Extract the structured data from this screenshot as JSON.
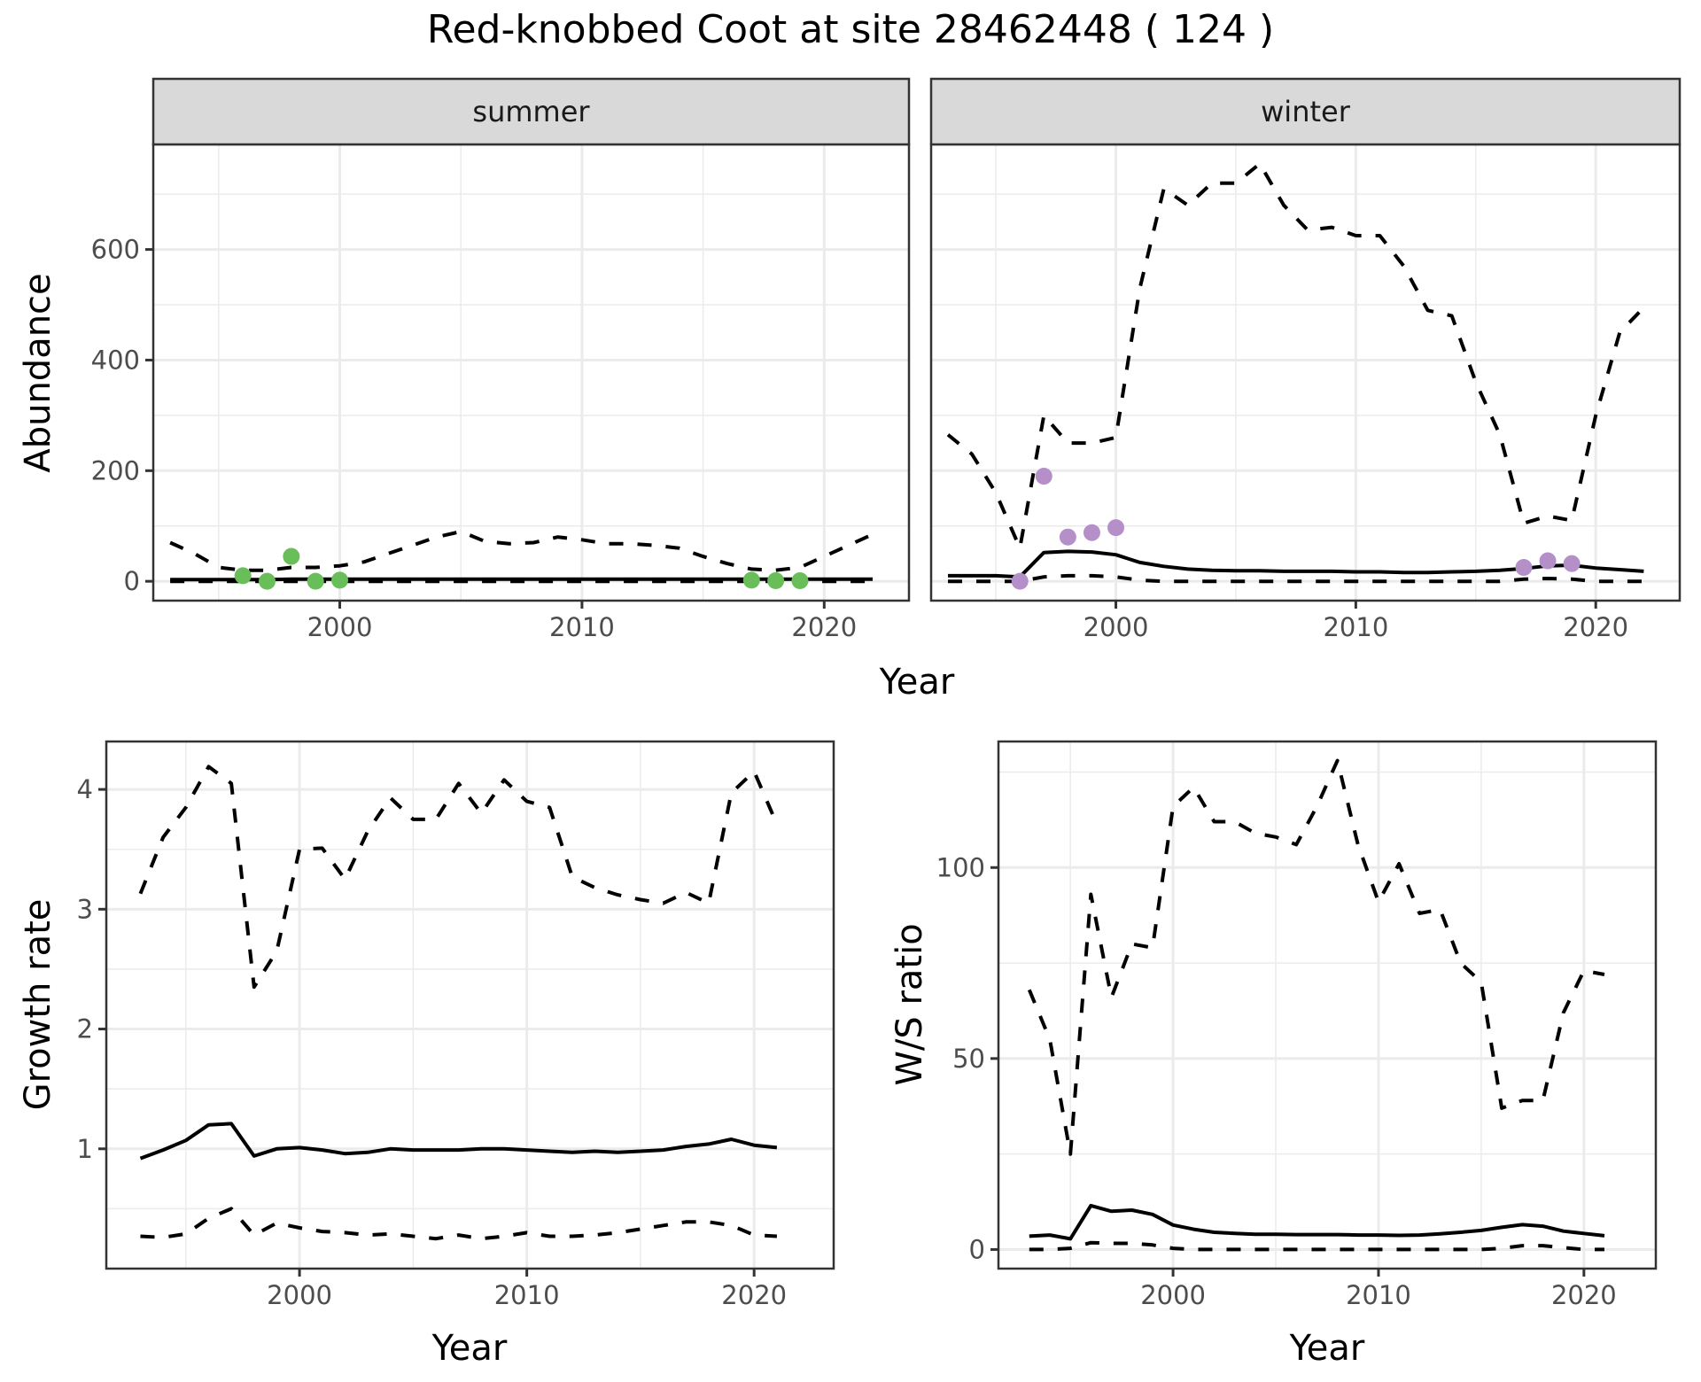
{
  "title": "Red-knobbed Coot at site 28462448 ( 124 )",
  "chart_data": [
    {
      "id": "abundance",
      "type": "line",
      "facets": [
        "summer",
        "winter"
      ],
      "xlabel": "Year",
      "ylabel": "Abundance",
      "xlim": [
        1992.3,
        2023.5
      ],
      "ylim": [
        -35,
        790
      ],
      "xticks": [
        2000,
        2010,
        2020
      ],
      "yticks": [
        0,
        200,
        400,
        600
      ],
      "grid": true,
      "panels": [
        {
          "facet": "summer",
          "point_color": "#6ABE5A",
          "points": {
            "x": [
              1996,
              1997,
              1998,
              1999,
              2000,
              2017,
              2018,
              2019
            ],
            "y": [
              10,
              0,
              45,
              0,
              2,
              2,
              1,
              1
            ]
          },
          "series": [
            {
              "name": "estimate",
              "style": "solid",
              "x": [
                1993,
                1994,
                1995,
                1996,
                1997,
                1998,
                1999,
                2000,
                2001,
                2002,
                2003,
                2004,
                2005,
                2006,
                2007,
                2008,
                2009,
                2010,
                2011,
                2012,
                2013,
                2014,
                2015,
                2016,
                2017,
                2018,
                2019,
                2020,
                2021,
                2022
              ],
              "y": [
                3,
                3,
                3,
                3,
                3,
                4,
                4,
                4,
                4,
                4,
                4,
                4,
                4,
                4,
                4,
                4,
                4,
                4,
                4,
                4,
                4,
                4,
                4,
                4,
                4,
                4,
                4,
                4,
                4,
                4
              ]
            },
            {
              "name": "upper",
              "style": "dashed",
              "x": [
                1993,
                1994,
                1995,
                1996,
                1997,
                1998,
                1999,
                2000,
                2001,
                2002,
                2003,
                2004,
                2005,
                2006,
                2007,
                2008,
                2009,
                2010,
                2011,
                2012,
                2013,
                2014,
                2015,
                2016,
                2017,
                2018,
                2019,
                2020,
                2021,
                2022
              ],
              "y": [
                70,
                50,
                25,
                20,
                20,
                25,
                25,
                28,
                35,
                50,
                65,
                80,
                90,
                72,
                68,
                70,
                80,
                75,
                68,
                68,
                65,
                60,
                45,
                32,
                22,
                20,
                25,
                45,
                65,
                85
              ]
            },
            {
              "name": "lower",
              "style": "dashed",
              "x": [
                1993,
                2022
              ],
              "y": [
                0,
                0
              ]
            }
          ]
        },
        {
          "facet": "winter",
          "point_color": "#B48FC8",
          "points": {
            "x": [
              1996,
              1997,
              1998,
              1999,
              2000,
              2017,
              2018,
              2019
            ],
            "y": [
              0,
              190,
              80,
              88,
              97,
              25,
              37,
              32
            ]
          },
          "series": [
            {
              "name": "estimate",
              "style": "solid",
              "x": [
                1993,
                1994,
                1995,
                1996,
                1997,
                1998,
                1999,
                2000,
                2001,
                2002,
                2003,
                2004,
                2005,
                2006,
                2007,
                2008,
                2009,
                2010,
                2011,
                2012,
                2013,
                2014,
                2015,
                2016,
                2017,
                2018,
                2019,
                2020,
                2021,
                2022
              ],
              "y": [
                10,
                10,
                10,
                8,
                52,
                54,
                53,
                48,
                34,
                27,
                22,
                20,
                19,
                19,
                18,
                18,
                18,
                17,
                17,
                16,
                16,
                17,
                18,
                20,
                23,
                28,
                29,
                24,
                21,
                18
              ]
            },
            {
              "name": "upper",
              "style": "dashed",
              "x": [
                1993,
                1994,
                1995,
                1996,
                1997,
                1998,
                1999,
                2000,
                2001,
                2002,
                2003,
                2004,
                2005,
                2006,
                2007,
                2008,
                2009,
                2010,
                2011,
                2012,
                2013,
                2014,
                2015,
                2016,
                2017,
                2018,
                2019,
                2020,
                2021,
                2022
              ],
              "y": [
                265,
                230,
                160,
                60,
                300,
                250,
                250,
                260,
                530,
                710,
                680,
                720,
                720,
                755,
                680,
                635,
                640,
                625,
                625,
                570,
                490,
                480,
                360,
                265,
                105,
                118,
                110,
                300,
                450,
                495
              ]
            },
            {
              "name": "lower",
              "style": "dashed",
              "x": [
                1993,
                1994,
                1995,
                1996,
                1997,
                1998,
                1999,
                2000,
                2001,
                2002,
                2010,
                2016,
                2017,
                2018,
                2019,
                2020,
                2022
              ],
              "y": [
                0,
                0,
                0,
                0,
                8,
                10,
                10,
                8,
                2,
                0,
                0,
                0,
                4,
                5,
                4,
                0,
                0
              ]
            }
          ]
        }
      ]
    },
    {
      "id": "growth",
      "type": "line",
      "xlabel": "Year",
      "ylabel": "Growth rate",
      "xlim": [
        1991.5,
        2023.5
      ],
      "ylim": [
        0.0,
        4.4
      ],
      "xticks": [
        2000,
        2010,
        2020
      ],
      "yticks": [
        1,
        2,
        3,
        4
      ],
      "grid": true,
      "series": [
        {
          "name": "estimate",
          "style": "solid",
          "x": [
            1993,
            1994,
            1995,
            1996,
            1997,
            1998,
            1999,
            2000,
            2001,
            2002,
            2003,
            2004,
            2005,
            2006,
            2007,
            2008,
            2009,
            2010,
            2011,
            2012,
            2013,
            2014,
            2015,
            2016,
            2017,
            2018,
            2019,
            2020,
            2021
          ],
          "y": [
            0.92,
            0.99,
            1.07,
            1.2,
            1.21,
            0.94,
            1.0,
            1.01,
            0.99,
            0.96,
            0.97,
            1.0,
            0.99,
            0.99,
            0.99,
            1.0,
            1.0,
            0.99,
            0.98,
            0.97,
            0.98,
            0.97,
            0.98,
            0.99,
            1.02,
            1.04,
            1.08,
            1.03,
            1.01
          ]
        },
        {
          "name": "upper",
          "style": "dashed",
          "x": [
            1993,
            1994,
            1995,
            1996,
            1997,
            1998,
            1999,
            2000,
            2001,
            2002,
            2003,
            2004,
            2005,
            2006,
            2007,
            2008,
            2009,
            2010,
            2011,
            2012,
            2013,
            2014,
            2015,
            2016,
            2017,
            2018,
            2019,
            2020,
            2021
          ],
          "y": [
            3.13,
            3.6,
            3.85,
            4.19,
            4.05,
            2.35,
            2.65,
            3.5,
            3.51,
            3.25,
            3.65,
            3.93,
            3.75,
            3.75,
            4.05,
            3.8,
            4.08,
            3.9,
            3.85,
            3.27,
            3.18,
            3.12,
            3.08,
            3.05,
            3.14,
            3.05,
            3.97,
            4.15,
            3.71
          ]
        },
        {
          "name": "lower",
          "style": "dashed",
          "x": [
            1993,
            1994,
            1995,
            1996,
            1997,
            1998,
            1999,
            2000,
            2001,
            2002,
            2003,
            2004,
            2005,
            2006,
            2007,
            2008,
            2009,
            2010,
            2011,
            2012,
            2013,
            2014,
            2015,
            2016,
            2017,
            2018,
            2019,
            2020,
            2021
          ],
          "y": [
            0.27,
            0.26,
            0.29,
            0.42,
            0.5,
            0.28,
            0.38,
            0.34,
            0.31,
            0.3,
            0.28,
            0.29,
            0.27,
            0.25,
            0.28,
            0.25,
            0.27,
            0.3,
            0.27,
            0.27,
            0.28,
            0.3,
            0.33,
            0.36,
            0.39,
            0.39,
            0.36,
            0.28,
            0.27
          ]
        }
      ]
    },
    {
      "id": "ws_ratio",
      "type": "line",
      "xlabel": "Year",
      "ylabel": "W/S ratio",
      "xlim": [
        1991.5,
        2023.5
      ],
      "ylim": [
        -5,
        133
      ],
      "xticks": [
        2000,
        2010,
        2020
      ],
      "yticks": [
        0,
        50,
        100
      ],
      "grid": true,
      "series": [
        {
          "name": "estimate",
          "style": "solid",
          "x": [
            1993,
            1994,
            1995,
            1996,
            1997,
            1998,
            1999,
            2000,
            2001,
            2002,
            2003,
            2004,
            2005,
            2006,
            2007,
            2008,
            2009,
            2010,
            2011,
            2012,
            2013,
            2014,
            2015,
            2016,
            2017,
            2018,
            2019,
            2020,
            2021
          ],
          "y": [
            3.5,
            3.8,
            2.8,
            11.5,
            10,
            10.3,
            9.2,
            6.4,
            5.3,
            4.5,
            4.2,
            4,
            4,
            3.9,
            3.9,
            3.9,
            3.8,
            3.8,
            3.7,
            3.8,
            4.1,
            4.5,
            5,
            5.8,
            6.5,
            6.1,
            4.8,
            4.2,
            3.6
          ]
        },
        {
          "name": "upper",
          "style": "dashed",
          "x": [
            1993,
            1994,
            1995,
            1996,
            1997,
            1998,
            1999,
            2000,
            2001,
            2002,
            2003,
            2004,
            2005,
            2006,
            2007,
            2008,
            2009,
            2010,
            2011,
            2012,
            2013,
            2014,
            2015,
            2016,
            2017,
            2018,
            2019,
            2020,
            2021
          ],
          "y": [
            68,
            55,
            25,
            93,
            66,
            80,
            79,
            116,
            121,
            112,
            112,
            109,
            108,
            106,
            116,
            128,
            106,
            91,
            101,
            88,
            89,
            75,
            70,
            37,
            39,
            39,
            62,
            73,
            72
          ]
        },
        {
          "name": "lower",
          "style": "dashed",
          "x": [
            1993,
            1994,
            1995,
            1996,
            1997,
            1998,
            1999,
            2000,
            2001,
            2010,
            2015,
            2016,
            2017,
            2018,
            2019,
            2020,
            2021
          ],
          "y": [
            0,
            0,
            0.3,
            1.8,
            1.6,
            1.6,
            1.2,
            0.3,
            0,
            0,
            0,
            0.3,
            1,
            1,
            0.5,
            0,
            0
          ]
        }
      ]
    }
  ]
}
